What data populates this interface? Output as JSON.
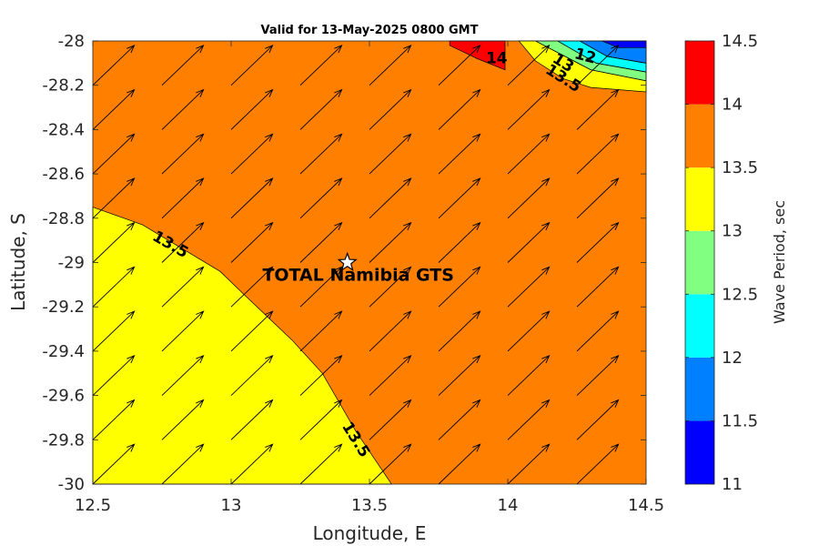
{
  "chart_data": {
    "type": "heatmap",
    "title": "Valid for 13-May-2025 0800 GMT",
    "xlabel": "Longitude, E",
    "ylabel": "Latitude, S",
    "xlim": [
      12.5,
      14.5
    ],
    "ylim": [
      -30,
      -28
    ],
    "xticks": [
      "12.5",
      "13",
      "13.5",
      "14",
      "14.5"
    ],
    "yticks": [
      "-28",
      "-28.2",
      "-28.4",
      "-28.6",
      "-28.8",
      "-29",
      "-29.2",
      "-29.4",
      "-29.6",
      "-29.8",
      "-30"
    ],
    "colorbar": {
      "label": "Wave Period, sec",
      "ticks": [
        "11",
        "11.5",
        "12",
        "12.5",
        "13",
        "13.5",
        "14",
        "14.5"
      ],
      "levels": [
        11,
        11.5,
        12,
        12.5,
        13,
        13.5,
        14,
        14.5
      ],
      "colors": [
        "#0000ff",
        "#0080ff",
        "#00ffff",
        "#80ff80",
        "#ffff00",
        "#ff8000",
        "#ff0000"
      ]
    },
    "regions": [
      {
        "range": [
          13.5,
          14
        ],
        "color": "#ff8000",
        "polygon": [
          [
            12.5,
            -28
          ],
          [
            14.5,
            -28
          ],
          [
            14.5,
            -30
          ],
          [
            12.5,
            -30
          ]
        ]
      },
      {
        "range": [
          13,
          13.5
        ],
        "color": "#ffff00",
        "polygon": [
          [
            12.5,
            -28.75
          ],
          [
            12.68,
            -28.83
          ],
          [
            12.88,
            -28.98
          ],
          [
            12.96,
            -29.04
          ],
          [
            13.06,
            -29.16
          ],
          [
            13.22,
            -29.35
          ],
          [
            13.33,
            -29.5
          ],
          [
            13.45,
            -29.76
          ],
          [
            13.58,
            -30
          ],
          [
            12.5,
            -30
          ]
        ]
      },
      {
        "range": [
          14,
          14.5
        ],
        "color": "#ff0000",
        "polygon": [
          [
            13.79,
            -28
          ],
          [
            13.99,
            -28
          ],
          [
            13.99,
            -28.13
          ],
          [
            13.89,
            -28.08
          ],
          [
            13.79,
            -28.02
          ]
        ]
      },
      {
        "range": [
          13,
          13.5
        ],
        "color": "#ffff00",
        "polygon": [
          [
            14.04,
            -28
          ],
          [
            14.1,
            -28
          ],
          [
            14.3,
            -28.13
          ],
          [
            14.5,
            -28.18
          ],
          [
            14.5,
            -28.23
          ],
          [
            14.3,
            -28.21
          ],
          [
            14.2,
            -28.17
          ],
          [
            14.1,
            -28.09
          ]
        ]
      },
      {
        "range": [
          12.5,
          13
        ],
        "color": "#80ff80",
        "polygon": [
          [
            14.1,
            -28
          ],
          [
            14.18,
            -28
          ],
          [
            14.32,
            -28.1
          ],
          [
            14.5,
            -28.14
          ],
          [
            14.5,
            -28.18
          ],
          [
            14.3,
            -28.13
          ]
        ]
      },
      {
        "range": [
          12,
          12.5
        ],
        "color": "#00ffff",
        "polygon": [
          [
            14.18,
            -28
          ],
          [
            14.26,
            -28
          ],
          [
            14.36,
            -28.07
          ],
          [
            14.5,
            -28.1
          ],
          [
            14.5,
            -28.14
          ],
          [
            14.32,
            -28.1
          ]
        ]
      },
      {
        "range": [
          11.5,
          12
        ],
        "color": "#0080ff",
        "polygon": [
          [
            14.26,
            -28
          ],
          [
            14.5,
            -28
          ],
          [
            14.5,
            -28.1
          ],
          [
            14.36,
            -28.07
          ]
        ]
      },
      {
        "range": [
          11,
          11.5
        ],
        "color": "#0000ff",
        "polygon": [
          [
            14.34,
            -28
          ],
          [
            14.5,
            -28
          ],
          [
            14.5,
            -28.03
          ],
          [
            14.4,
            -28.03
          ]
        ]
      }
    ],
    "contour_labels": [
      {
        "text": "13.5",
        "x": 12.78,
        "y": -28.92,
        "angle": 30
      },
      {
        "text": "13.5",
        "x": 13.45,
        "y": -29.8,
        "angle": 58
      },
      {
        "text": "14",
        "x": 13.96,
        "y": -28.08,
        "angle": 0
      },
      {
        "text": "13.5",
        "x": 14.2,
        "y": -28.17,
        "angle": 32
      },
      {
        "text": "13",
        "x": 14.2,
        "y": -28.1,
        "angle": 32
      },
      {
        "text": "12",
        "x": 14.28,
        "y": -28.07,
        "angle": 15
      }
    ],
    "vector_field": {
      "x": [
        12.5,
        12.75,
        13.0,
        13.25,
        13.5,
        13.75,
        14.0,
        14.25
      ],
      "y": [
        -30,
        -29.8,
        -29.6,
        -29.4,
        -29.2,
        -29.0,
        -28.8,
        -28.6,
        -28.4,
        -28.2
      ],
      "dx": 0.15,
      "dy": 0.18
    },
    "site": {
      "name": "TOTAL Namibia GTS",
      "x": 13.42,
      "y": -29.0
    }
  }
}
